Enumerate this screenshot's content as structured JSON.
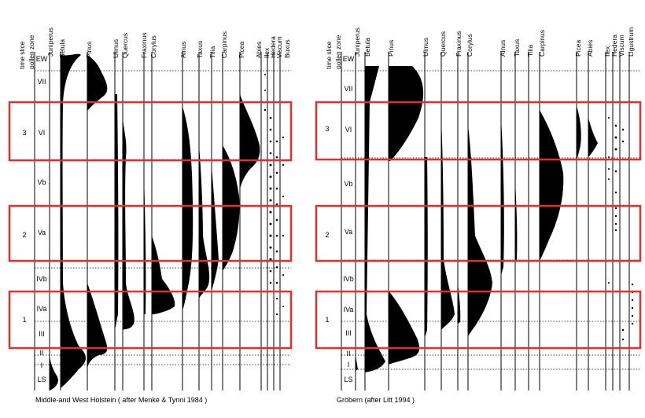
{
  "diagrams": [
    {
      "id": "holstein",
      "caption": "Middle-and West Holstein ( after Menke & Tynni 1984 )",
      "header_left": [
        "time slice",
        "pollen zone"
      ],
      "taxa": [
        "Juniperus",
        "Betula",
        "Pinus",
        "Ulmus",
        "Quercus",
        "Fraxinus",
        "Corylus",
        "Alnus",
        "Taxus",
        "Tilia",
        "Carpinus",
        "Picea",
        "Abies",
        "Ilex",
        "Hedera",
        "Viscum",
        "Buxus"
      ],
      "zones": [
        "EW",
        "VII",
        "VI",
        "Vb",
        "Va",
        "IVb",
        "IVa",
        "III",
        "II",
        "I",
        "LS"
      ],
      "time_slices": [
        "3",
        "2",
        "1"
      ]
    },
    {
      "id": "grobern",
      "caption": "Gröbern (after Litt 1994 )",
      "header_left": [
        "time slice",
        "pollen zone"
      ],
      "taxa": [
        "Juniperus",
        "Betula",
        "Pinus",
        "Ulmus",
        "Quercus",
        "Fraxinus",
        "Corylus",
        "Alnus",
        "Taxus",
        "Tilia",
        "Carpinus",
        "Picea",
        "Abies",
        "Ilex",
        "Hedera",
        "Viscum",
        "Ligustrum"
      ],
      "zones": [
        "EW",
        "VII",
        "VI",
        "Vb",
        "Va",
        "IVb",
        "IVa",
        "III",
        "II",
        "I",
        "LS"
      ],
      "time_slices": [
        "3",
        "2",
        "1"
      ]
    }
  ],
  "colors": {
    "ink": "#000000",
    "highlight": "#e0322a",
    "paper": "#ffffff"
  }
}
